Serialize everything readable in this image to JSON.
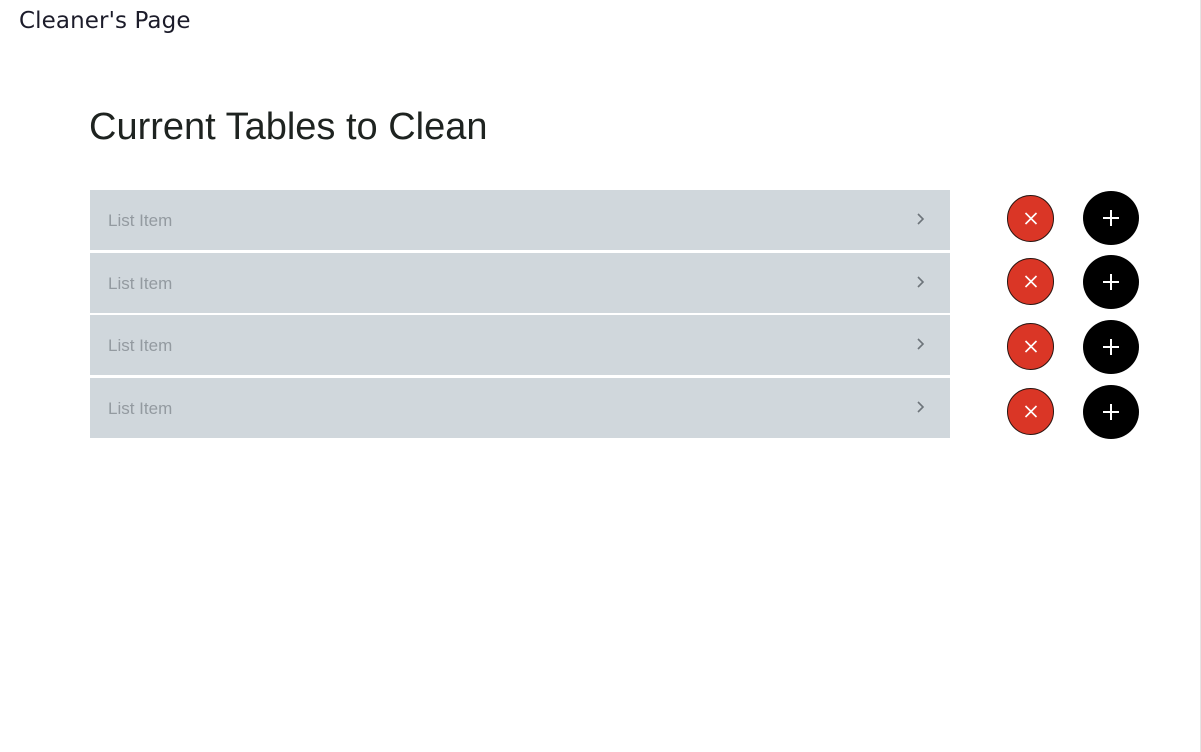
{
  "header": {
    "title": "Cleaner's Page"
  },
  "main": {
    "heading": "Current Tables to Clean",
    "items": [
      {
        "label": "List Item"
      },
      {
        "label": "List Item"
      },
      {
        "label": "List Item"
      },
      {
        "label": "List Item"
      }
    ],
    "icons": {
      "row_arrow": "chevron-right-icon",
      "remove": "close-icon",
      "add": "plus-icon"
    },
    "colors": {
      "list_background": "#d0d7dc",
      "list_text": "#939aa0",
      "remove_button": "#da3626",
      "add_button": "#000000"
    }
  }
}
